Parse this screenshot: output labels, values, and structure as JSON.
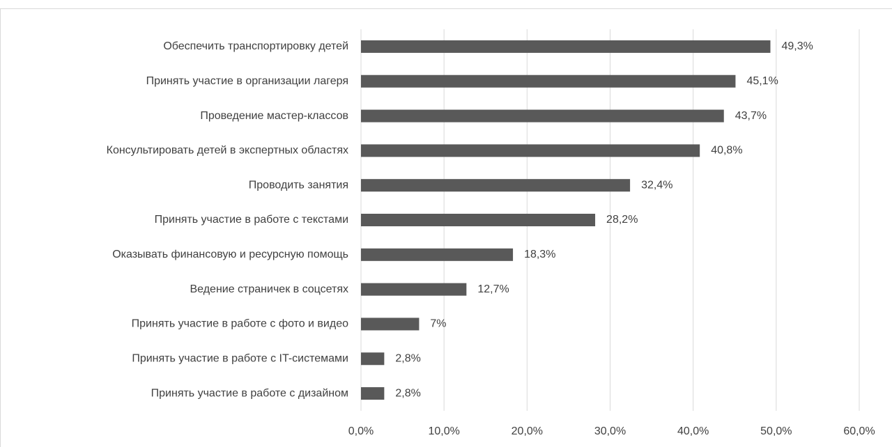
{
  "chart_data": {
    "type": "bar",
    "orientation": "horizontal",
    "categories": [
      "Обеспечить транспортировку детей",
      "Принять участие в организации лагеря",
      "Проведение мастер-классов",
      "Консультировать детей в экспертных областях",
      "Проводить занятия",
      "Принять участие в работе с текстами",
      "Оказывать финансовую и ресурсную помощь",
      "Ведение страничек в соцсетях",
      "Принять участие в работе с фото и видео",
      "Принять участие в работе с IT-системами",
      "Принять участие в работе с дизайном"
    ],
    "values": [
      49.3,
      45.1,
      43.7,
      40.8,
      32.4,
      28.2,
      18.3,
      12.7,
      7,
      2.8,
      2.8
    ],
    "value_labels": [
      "49,3%",
      "45,1%",
      "43,7%",
      "40,8%",
      "32,4%",
      "28,2%",
      "18,3%",
      "12,7%",
      "7%",
      "2,8%",
      "2,8%"
    ],
    "color": "#595959",
    "xlim": [
      0,
      60
    ],
    "xticks": [
      {
        "value": 0,
        "label": "0,0%"
      },
      {
        "value": 10,
        "label": "10,0%"
      },
      {
        "value": 20,
        "label": "20,0%"
      },
      {
        "value": 30,
        "label": "30,0%"
      },
      {
        "value": 40,
        "label": "40,0%"
      },
      {
        "value": 50,
        "label": "50,0%"
      },
      {
        "value": 60,
        "label": "60,0%"
      }
    ],
    "grid": true
  }
}
